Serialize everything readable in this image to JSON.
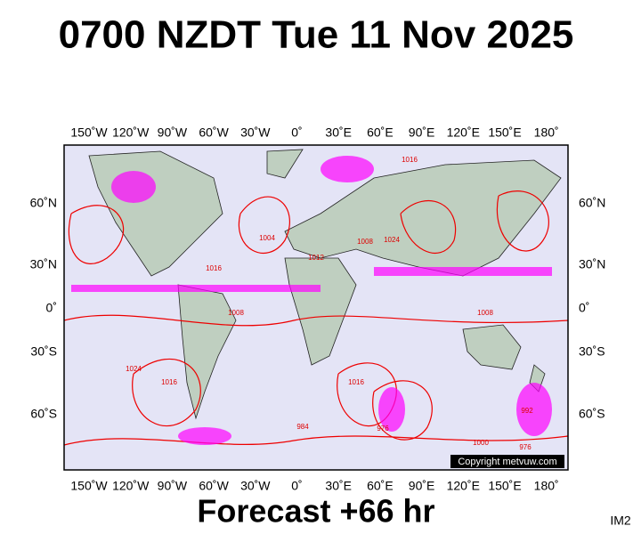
{
  "header": {
    "title": "0700 NZDT Tue 11 Nov 2025"
  },
  "map": {
    "lon_labels": [
      "150˚W",
      "120˚W",
      "90˚W",
      "60˚W",
      "30˚W",
      "0˚",
      "30˚E",
      "60˚E",
      "90˚E",
      "120˚E",
      "150˚E",
      "180˚"
    ],
    "lat_labels": [
      "60˚N",
      "30˚N",
      "0˚",
      "30˚S",
      "60˚S"
    ],
    "isobar_labels": [
      "1016",
      "1008",
      "1004",
      "1024",
      "1016",
      "1012",
      "1008",
      "1024",
      "1016",
      "984",
      "976",
      "992",
      "1000",
      "976",
      "1016",
      "1008"
    ],
    "copyright": "Copyright metvuw.com"
  },
  "footer": {
    "forecast": "Forecast +66 hr",
    "code": "IM2"
  }
}
